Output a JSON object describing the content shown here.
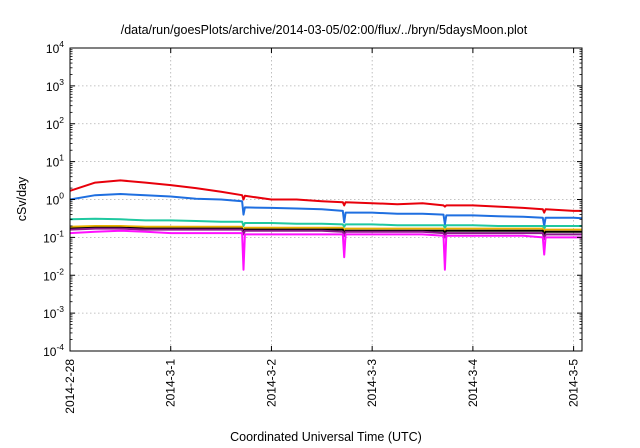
{
  "chart_data": {
    "type": "line",
    "title": "/data/run/goesPlots/archive/2014-03-05/02:00/flux/../bryn/5daysMoon.plot",
    "xlabel": "Coordinated Universal Time (UTC)",
    "ylabel": "cSv/day",
    "yscale": "log",
    "ylim": [
      0.0001,
      10000
    ],
    "y_ticks": [
      {
        "base": "10",
        "exp": "-4",
        "value": 0.0001
      },
      {
        "base": "10",
        "exp": "-3",
        "value": 0.001
      },
      {
        "base": "10",
        "exp": "-2",
        "value": 0.01
      },
      {
        "base": "10",
        "exp": "-1",
        "value": 0.1
      },
      {
        "base": "10",
        "exp": "0",
        "value": 1
      },
      {
        "base": "10",
        "exp": "1",
        "value": 10
      },
      {
        "base": "10",
        "exp": "2",
        "value": 100
      },
      {
        "base": "10",
        "exp": "3",
        "value": 1000
      },
      {
        "base": "10",
        "exp": "4",
        "value": 10000
      }
    ],
    "xlim": [
      "2014-02-28T00:00",
      "2014-03-05T02:00"
    ],
    "x_ticks": [
      {
        "label": "2014-2-28",
        "value": "2014-02-28T00:00"
      },
      {
        "label": "2014-3-1",
        "value": "2014-03-01T00:00"
      },
      {
        "label": "2014-3-2",
        "value": "2014-03-02T00:00"
      },
      {
        "label": "2014-3-3",
        "value": "2014-03-03T00:00"
      },
      {
        "label": "2014-3-4",
        "value": "2014-03-04T00:00"
      },
      {
        "label": "2014-3-5",
        "value": "2014-03-05T00:00"
      }
    ],
    "grid": true,
    "x": [
      "2014-02-28T00:00",
      "2014-02-28T06:00",
      "2014-02-28T12:00",
      "2014-02-28T18:00",
      "2014-03-01T00:00",
      "2014-03-01T06:00",
      "2014-03-01T12:00",
      "2014-03-01T17:00",
      "2014-03-01T17:20",
      "2014-03-01T17:40",
      "2014-03-02T00:00",
      "2014-03-02T06:00",
      "2014-03-02T12:00",
      "2014-03-02T17:00",
      "2014-03-02T17:20",
      "2014-03-02T17:40",
      "2014-03-03T00:00",
      "2014-03-03T06:00",
      "2014-03-03T12:00",
      "2014-03-03T17:00",
      "2014-03-03T17:20",
      "2014-03-03T17:40",
      "2014-03-04T00:00",
      "2014-03-04T06:00",
      "2014-03-04T12:00",
      "2014-03-04T16:40",
      "2014-03-04T17:00",
      "2014-03-04T17:20",
      "2014-03-05T00:00",
      "2014-03-05T02:00"
    ],
    "series": [
      {
        "color": "#e8000b",
        "values": [
          1.7,
          2.8,
          3.2,
          2.8,
          2.4,
          2.0,
          1.6,
          1.3,
          1.0,
          1.25,
          1.0,
          1.0,
          0.9,
          0.85,
          0.7,
          0.85,
          0.8,
          0.75,
          0.8,
          0.7,
          0.65,
          0.7,
          0.7,
          0.65,
          0.6,
          0.55,
          0.45,
          0.55,
          0.5,
          0.5
        ]
      },
      {
        "color": "#1f6fe0",
        "values": [
          1.0,
          1.3,
          1.4,
          1.3,
          1.2,
          1.05,
          1.0,
          0.9,
          0.4,
          0.62,
          0.6,
          0.58,
          0.55,
          0.5,
          0.25,
          0.45,
          0.45,
          0.42,
          0.42,
          0.4,
          0.22,
          0.38,
          0.38,
          0.36,
          0.35,
          0.33,
          0.2,
          0.33,
          0.33,
          0.32
        ]
      },
      {
        "color": "#1fc8a0",
        "values": [
          0.3,
          0.31,
          0.3,
          0.28,
          0.28,
          0.27,
          0.26,
          0.26,
          0.2,
          0.24,
          0.24,
          0.23,
          0.23,
          0.22,
          0.19,
          0.22,
          0.22,
          0.21,
          0.21,
          0.21,
          0.18,
          0.21,
          0.21,
          0.2,
          0.2,
          0.2,
          0.17,
          0.2,
          0.2,
          0.2
        ]
      },
      {
        "color": "#e8b000",
        "values": [
          0.19,
          0.2,
          0.2,
          0.19,
          0.19,
          0.19,
          0.19,
          0.19,
          0.15,
          0.18,
          0.18,
          0.18,
          0.18,
          0.18,
          0.15,
          0.17,
          0.17,
          0.17,
          0.17,
          0.17,
          0.14,
          0.17,
          0.17,
          0.17,
          0.17,
          0.17,
          0.14,
          0.16,
          0.16,
          0.16
        ]
      },
      {
        "color": "#000000",
        "values": [
          0.17,
          0.18,
          0.18,
          0.17,
          0.17,
          0.17,
          0.17,
          0.17,
          0.14,
          0.16,
          0.16,
          0.16,
          0.16,
          0.16,
          0.13,
          0.15,
          0.15,
          0.15,
          0.15,
          0.15,
          0.13,
          0.15,
          0.15,
          0.15,
          0.15,
          0.15,
          0.12,
          0.14,
          0.14,
          0.14
        ]
      },
      {
        "color": "#8b1a8b",
        "values": [
          0.16,
          0.17,
          0.17,
          0.16,
          0.16,
          0.16,
          0.16,
          0.16,
          0.12,
          0.15,
          0.15,
          0.15,
          0.15,
          0.14,
          0.11,
          0.14,
          0.14,
          0.14,
          0.14,
          0.13,
          0.1,
          0.13,
          0.13,
          0.13,
          0.13,
          0.13,
          0.09,
          0.12,
          0.12,
          0.12
        ]
      },
      {
        "color": "#ff10ff",
        "values": [
          0.13,
          0.14,
          0.15,
          0.14,
          0.13,
          0.13,
          0.13,
          0.13,
          0.014,
          0.12,
          0.12,
          0.12,
          0.12,
          0.12,
          0.03,
          0.12,
          0.12,
          0.12,
          0.12,
          0.11,
          0.014,
          0.11,
          0.11,
          0.11,
          0.11,
          0.1,
          0.035,
          0.1,
          0.1,
          0.1
        ]
      }
    ]
  }
}
